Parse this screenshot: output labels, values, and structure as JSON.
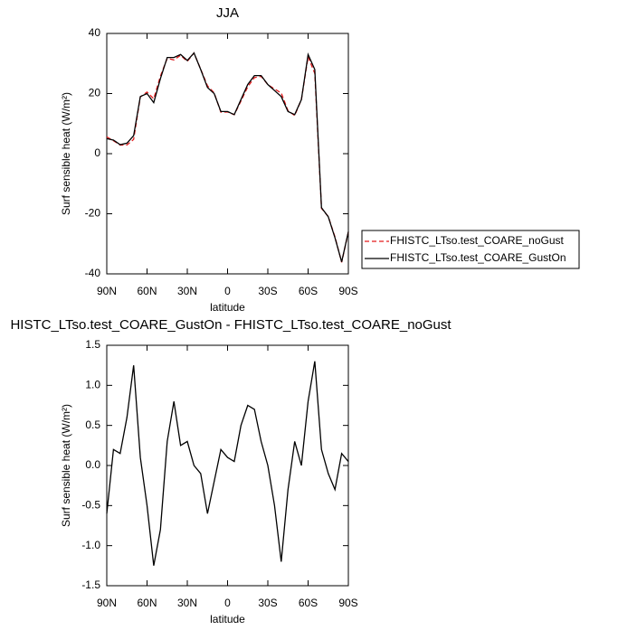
{
  "chart_data": [
    {
      "type": "line",
      "title": "JJA",
      "xlabel": "latitude",
      "ylabel": "Surf sensible heat (W/m²)",
      "x": [
        90,
        85,
        80,
        75,
        70,
        65,
        60,
        55,
        50,
        45,
        40,
        35,
        30,
        25,
        20,
        15,
        10,
        5,
        0,
        -5,
        -10,
        -15,
        -20,
        -25,
        -30,
        -35,
        -40,
        -45,
        -50,
        -55,
        -60,
        -65,
        -70,
        -75,
        -80,
        -85,
        -90
      ],
      "xlim": [
        90,
        -90
      ],
      "xticks": [
        {
          "value": 90,
          "label": "90N"
        },
        {
          "value": 60,
          "label": "60N"
        },
        {
          "value": 30,
          "label": "30N"
        },
        0,
        {
          "value": -30,
          "label": "30S"
        },
        {
          "value": -60,
          "label": "60S"
        },
        {
          "value": -90,
          "label": "90S"
        }
      ],
      "ylim": [
        -40,
        40
      ],
      "yticks": [
        -40,
        -20,
        0,
        20,
        40
      ],
      "legend": "right",
      "series": [
        {
          "name": "FHISTC_LTso.test_COARE_noGust",
          "color": "#e31a1c",
          "dash": true,
          "values": [
            5.6,
            4.3,
            2.85,
            2.9,
            4.75,
            18.9,
            20.5,
            18.25,
            25.8,
            31.7,
            31.2,
            32.75,
            30.7,
            33.5,
            28.1,
            22.6,
            20.2,
            13.8,
            13.9,
            12.95,
            17.5,
            22.25,
            25.3,
            25.7,
            23,
            21.5,
            20.2,
            14.3,
            12.7,
            18,
            32.2,
            26.7,
            -18.2,
            -20.9,
            -27.7,
            -36.15,
            -26.05
          ]
        },
        {
          "name": "FHISTC_LTso.test_COARE_GustOn",
          "color": "#000000",
          "dash": false,
          "values": [
            5,
            4.5,
            3,
            3.5,
            6,
            19,
            20,
            17,
            25,
            32,
            32,
            33,
            31,
            33.5,
            28,
            22,
            20,
            14,
            14,
            13,
            18,
            23,
            26,
            26,
            23,
            21,
            19,
            14,
            13,
            18,
            33,
            28,
            -18,
            -21,
            -28,
            -36,
            -26
          ]
        }
      ]
    },
    {
      "type": "line",
      "title": "HISTC_LTso.test_COARE_GustOn - FHISTC_LTso.test_COARE_noGust",
      "xlabel": "latitude",
      "ylabel": "Surf sensible heat (W/m²)",
      "x": [
        90,
        85,
        80,
        75,
        70,
        65,
        60,
        55,
        50,
        45,
        40,
        35,
        30,
        25,
        20,
        15,
        10,
        5,
        0,
        -5,
        -10,
        -15,
        -20,
        -25,
        -30,
        -35,
        -40,
        -45,
        -50,
        -55,
        -60,
        -65,
        -70,
        -75,
        -80,
        -85,
        -90
      ],
      "xlim": [
        90,
        -90
      ],
      "xticks": [
        {
          "value": 90,
          "label": "90N"
        },
        {
          "value": 60,
          "label": "60N"
        },
        {
          "value": 30,
          "label": "30N"
        },
        0,
        {
          "value": -30,
          "label": "30S"
        },
        {
          "value": -60,
          "label": "60S"
        },
        {
          "value": -90,
          "label": "90S"
        }
      ],
      "ylim": [
        -1.5,
        1.5
      ],
      "yticks": [
        -1.5,
        {
          "value": -1,
          "label": "-1.0"
        },
        -0.5,
        {
          "value": 0,
          "label": "0.0"
        },
        0.5,
        {
          "value": 1,
          "label": "1.0"
        },
        1.5
      ],
      "series": [
        {
          "color": "#000000",
          "dash": false,
          "values": [
            -0.6,
            0.2,
            0.15,
            0.6,
            1.25,
            0.1,
            -0.5,
            -1.25,
            -0.8,
            0.3,
            0.8,
            0.25,
            0.3,
            0,
            -0.1,
            -0.6,
            -0.2,
            0.2,
            0.1,
            0.05,
            0.5,
            0.75,
            0.7,
            0.3,
            0,
            -0.5,
            -1.2,
            -0.3,
            0.3,
            0,
            0.8,
            1.3,
            0.2,
            -0.1,
            -0.3,
            0.15,
            0.05
          ]
        }
      ]
    }
  ]
}
